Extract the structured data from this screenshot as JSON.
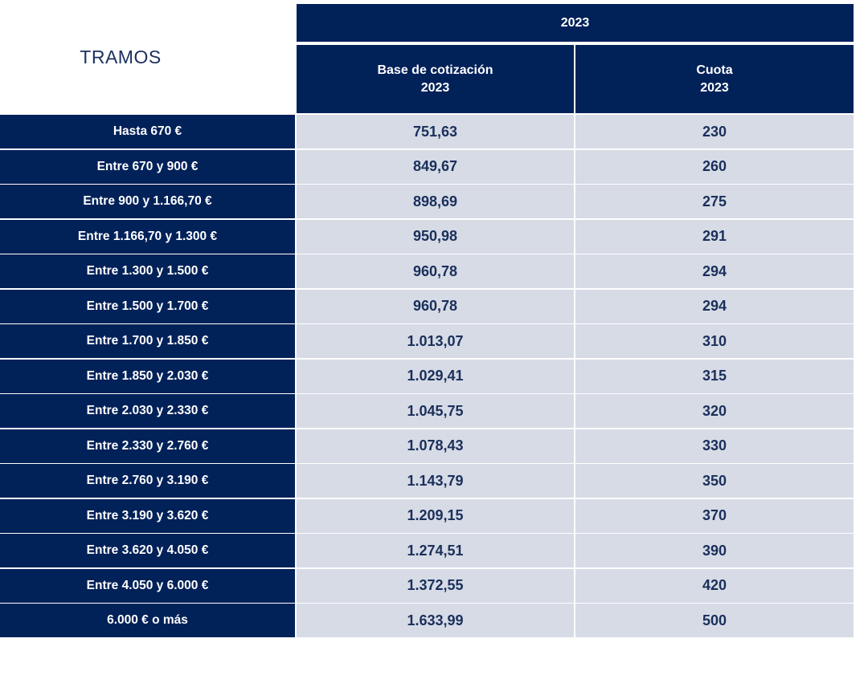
{
  "chart_data": {
    "type": "table",
    "title_left": "TRAMOS",
    "year_header": "2023",
    "columns": [
      {
        "line1": "Base de cotización",
        "line2": "2023"
      },
      {
        "line1": "Cuota",
        "line2": "2023"
      }
    ],
    "rows": [
      {
        "tramo": "Hasta 670 €",
        "base": "751,63",
        "cuota": "230"
      },
      {
        "tramo": "Entre 670 y 900 €",
        "base": "849,67",
        "cuota": "260"
      },
      {
        "tramo": "Entre 900 y 1.166,70 €",
        "base": "898,69",
        "cuota": "275"
      },
      {
        "tramo": "Entre 1.166,70 y 1.300 €",
        "base": "950,98",
        "cuota": "291"
      },
      {
        "tramo": "Entre 1.300 y 1.500 €",
        "base": "960,78",
        "cuota": "294"
      },
      {
        "tramo": "Entre 1.500 y 1.700 €",
        "base": "960,78",
        "cuota": "294"
      },
      {
        "tramo": "Entre 1.700 y 1.850 €",
        "base": "1.013,07",
        "cuota": "310"
      },
      {
        "tramo": "Entre 1.850 y 2.030 €",
        "base": "1.029,41",
        "cuota": "315"
      },
      {
        "tramo": "Entre 2.030 y 2.330 €",
        "base": "1.045,75",
        "cuota": "320"
      },
      {
        "tramo": "Entre 2.330 y 2.760 €",
        "base": "1.078,43",
        "cuota": "330"
      },
      {
        "tramo": "Entre 2.760 y 3.190 €",
        "base": "1.143,79",
        "cuota": "350"
      },
      {
        "tramo": "Entre 3.190 y 3.620 €",
        "base": "1.209,15",
        "cuota": "370"
      },
      {
        "tramo": "Entre 3.620 y 4.050 €",
        "base": "1.274,51",
        "cuota": "390"
      },
      {
        "tramo": "Entre 4.050 y 6.000 €",
        "base": "1.372,55",
        "cuota": "420"
      },
      {
        "tramo": "6.000 € o más",
        "base": "1.633,99",
        "cuota": "500"
      }
    ]
  },
  "colors": {
    "header_bg": "#012159",
    "value_bg": "#d6dbe6",
    "value_text": "#1a2f5a",
    "title_text": "#1c3160"
  }
}
